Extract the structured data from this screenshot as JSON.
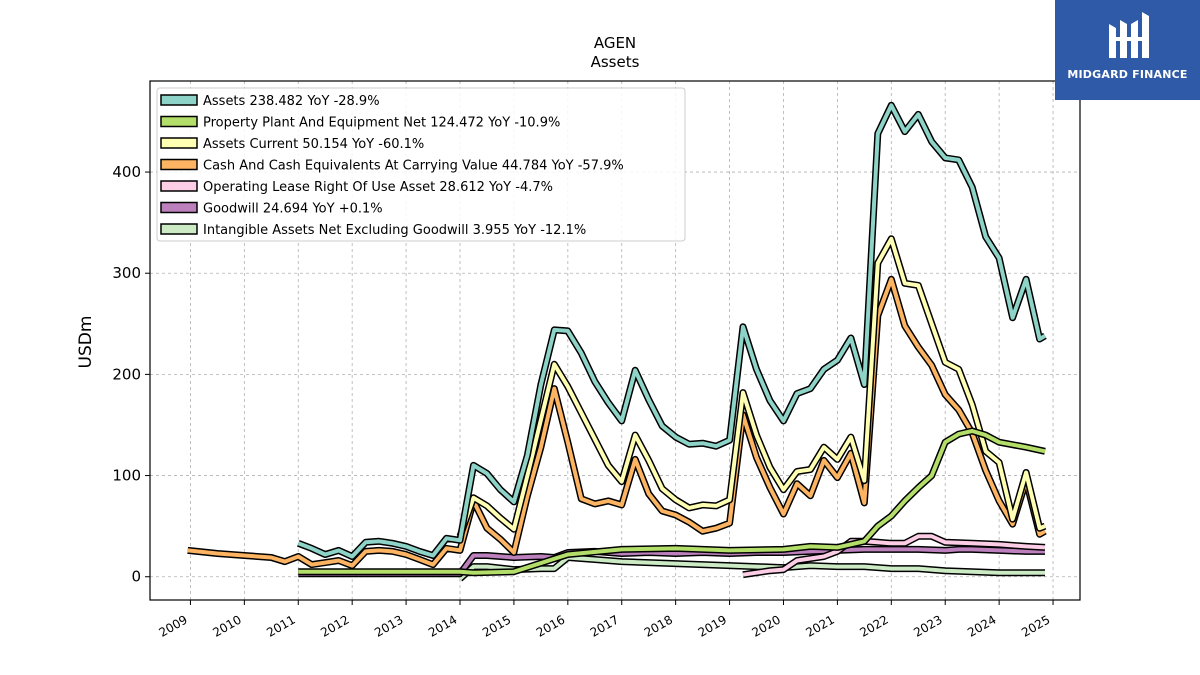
{
  "chart_data": {
    "type": "line",
    "title": "AGEN",
    "subtitle": "Assets",
    "xlabel": "",
    "ylabel": "USDm",
    "xlim": [
      2008.25,
      2025.5
    ],
    "ylim": [
      -23,
      490
    ],
    "xticks": [
      "2009",
      "2010",
      "2011",
      "2012",
      "2013",
      "2014",
      "2015",
      "2016",
      "2017",
      "2018",
      "2019",
      "2020",
      "2021",
      "2022",
      "2023",
      "2024",
      "2025"
    ],
    "yticks": [
      0,
      100,
      200,
      300,
      400
    ],
    "grid": true,
    "legend_position": "top-left",
    "series": [
      {
        "name": "Assets  238.482 YoY -28.9%",
        "color": "#8dd3c7",
        "points": [
          [
            2011.0,
            33
          ],
          [
            2011.25,
            28
          ],
          [
            2011.5,
            22
          ],
          [
            2011.75,
            26
          ],
          [
            2012.0,
            20
          ],
          [
            2012.25,
            34
          ],
          [
            2012.5,
            35
          ],
          [
            2012.75,
            33
          ],
          [
            2013.0,
            30
          ],
          [
            2013.25,
            25
          ],
          [
            2013.5,
            21
          ],
          [
            2013.75,
            38
          ],
          [
            2014.0,
            36
          ],
          [
            2014.25,
            110
          ],
          [
            2014.5,
            102
          ],
          [
            2014.75,
            86
          ],
          [
            2015.0,
            74
          ],
          [
            2015.25,
            120
          ],
          [
            2015.5,
            190
          ],
          [
            2015.75,
            244
          ],
          [
            2016.0,
            243
          ],
          [
            2016.25,
            221
          ],
          [
            2016.5,
            193
          ],
          [
            2016.75,
            172
          ],
          [
            2017.0,
            154
          ],
          [
            2017.25,
            204
          ],
          [
            2017.5,
            175
          ],
          [
            2017.75,
            149
          ],
          [
            2018.0,
            138
          ],
          [
            2018.25,
            131
          ],
          [
            2018.5,
            132
          ],
          [
            2018.75,
            129
          ],
          [
            2019.0,
            135
          ],
          [
            2019.25,
            247
          ],
          [
            2019.5,
            205
          ],
          [
            2019.75,
            174
          ],
          [
            2020.0,
            154
          ],
          [
            2020.25,
            181
          ],
          [
            2020.5,
            186
          ],
          [
            2020.75,
            205
          ],
          [
            2021.0,
            214
          ],
          [
            2021.25,
            236
          ],
          [
            2021.5,
            190
          ],
          [
            2021.75,
            438
          ],
          [
            2022.0,
            466
          ],
          [
            2022.25,
            440
          ],
          [
            2022.5,
            457
          ],
          [
            2022.75,
            430
          ],
          [
            2023.0,
            414
          ],
          [
            2023.25,
            412
          ],
          [
            2023.5,
            385
          ],
          [
            2023.75,
            336
          ],
          [
            2024.0,
            315
          ],
          [
            2024.25,
            256
          ],
          [
            2024.5,
            294
          ],
          [
            2024.75,
            235
          ],
          [
            2024.85,
            238
          ]
        ]
      },
      {
        "name": "Property Plant And Equipment Net  124.472 YoY -10.9%",
        "color": "#b3de69",
        "points": [
          [
            2011.0,
            5
          ],
          [
            2012.0,
            5
          ],
          [
            2013.0,
            5
          ],
          [
            2014.0,
            5
          ],
          [
            2014.25,
            4
          ],
          [
            2015.0,
            5
          ],
          [
            2016.0,
            22
          ],
          [
            2017.0,
            27
          ],
          [
            2018.0,
            28
          ],
          [
            2019.0,
            26
          ],
          [
            2020.0,
            27
          ],
          [
            2020.5,
            30
          ],
          [
            2021.0,
            29
          ],
          [
            2021.5,
            35
          ],
          [
            2021.75,
            50
          ],
          [
            2022.0,
            60
          ],
          [
            2022.25,
            75
          ],
          [
            2022.5,
            88
          ],
          [
            2022.75,
            100
          ],
          [
            2023.0,
            133
          ],
          [
            2023.25,
            141
          ],
          [
            2023.5,
            144
          ],
          [
            2023.75,
            140
          ],
          [
            2024.0,
            133
          ],
          [
            2024.5,
            128
          ],
          [
            2024.85,
            124
          ]
        ]
      },
      {
        "name": "Assets Current  50.154 YoY -60.1%",
        "color": "#ffffb3",
        "points": [
          [
            2014.0,
            40
          ],
          [
            2014.25,
            78
          ],
          [
            2014.5,
            70
          ],
          [
            2014.75,
            58
          ],
          [
            2015.0,
            47
          ],
          [
            2015.25,
            100
          ],
          [
            2015.5,
            155
          ],
          [
            2015.75,
            210
          ],
          [
            2016.0,
            188
          ],
          [
            2016.25,
            162
          ],
          [
            2016.5,
            136
          ],
          [
            2016.75,
            110
          ],
          [
            2017.0,
            94
          ],
          [
            2017.25,
            140
          ],
          [
            2017.5,
            115
          ],
          [
            2017.75,
            87
          ],
          [
            2018.0,
            76
          ],
          [
            2018.25,
            68
          ],
          [
            2018.5,
            71
          ],
          [
            2018.75,
            70
          ],
          [
            2019.0,
            76
          ],
          [
            2019.25,
            182
          ],
          [
            2019.5,
            140
          ],
          [
            2019.75,
            108
          ],
          [
            2020.0,
            86
          ],
          [
            2020.25,
            104
          ],
          [
            2020.5,
            106
          ],
          [
            2020.75,
            128
          ],
          [
            2021.0,
            116
          ],
          [
            2021.25,
            138
          ],
          [
            2021.5,
            95
          ],
          [
            2021.75,
            310
          ],
          [
            2022.0,
            334
          ],
          [
            2022.25,
            290
          ],
          [
            2022.5,
            288
          ],
          [
            2022.75,
            250
          ],
          [
            2023.0,
            212
          ],
          [
            2023.25,
            205
          ],
          [
            2023.5,
            170
          ],
          [
            2023.75,
            124
          ],
          [
            2024.0,
            113
          ],
          [
            2024.25,
            57
          ],
          [
            2024.5,
            103
          ],
          [
            2024.75,
            48
          ],
          [
            2024.85,
            50
          ]
        ]
      },
      {
        "name": "Cash And Cash Equivalents At Carrying Value  44.784 YoY -57.9%",
        "color": "#fdb462",
        "points": [
          [
            2008.95,
            26
          ],
          [
            2009.5,
            23
          ],
          [
            2010.0,
            21
          ],
          [
            2010.5,
            19
          ],
          [
            2010.75,
            15
          ],
          [
            2011.0,
            20
          ],
          [
            2011.25,
            12
          ],
          [
            2011.5,
            14
          ],
          [
            2011.75,
            16
          ],
          [
            2012.0,
            11
          ],
          [
            2012.25,
            25
          ],
          [
            2012.5,
            26
          ],
          [
            2012.75,
            25
          ],
          [
            2013.0,
            22
          ],
          [
            2013.25,
            17
          ],
          [
            2013.5,
            12
          ],
          [
            2013.75,
            28
          ],
          [
            2014.0,
            26
          ],
          [
            2014.25,
            75
          ],
          [
            2014.5,
            48
          ],
          [
            2014.75,
            37
          ],
          [
            2015.0,
            24
          ],
          [
            2015.25,
            80
          ],
          [
            2015.5,
            128
          ],
          [
            2015.75,
            186
          ],
          [
            2016.0,
            133
          ],
          [
            2016.25,
            77
          ],
          [
            2016.5,
            72
          ],
          [
            2016.75,
            75
          ],
          [
            2017.0,
            71
          ],
          [
            2017.25,
            116
          ],
          [
            2017.5,
            82
          ],
          [
            2017.75,
            65
          ],
          [
            2018.0,
            61
          ],
          [
            2018.25,
            54
          ],
          [
            2018.5,
            45
          ],
          [
            2018.75,
            48
          ],
          [
            2019.0,
            53
          ],
          [
            2019.25,
            160
          ],
          [
            2019.5,
            118
          ],
          [
            2019.75,
            88
          ],
          [
            2020.0,
            62
          ],
          [
            2020.25,
            92
          ],
          [
            2020.5,
            80
          ],
          [
            2020.75,
            115
          ],
          [
            2021.0,
            98
          ],
          [
            2021.25,
            122
          ],
          [
            2021.5,
            73
          ],
          [
            2021.75,
            258
          ],
          [
            2022.0,
            294
          ],
          [
            2022.25,
            248
          ],
          [
            2022.5,
            227
          ],
          [
            2022.75,
            209
          ],
          [
            2023.0,
            180
          ],
          [
            2023.25,
            165
          ],
          [
            2023.5,
            142
          ],
          [
            2023.75,
            105
          ],
          [
            2024.0,
            75
          ],
          [
            2024.25,
            52
          ],
          [
            2024.5,
            95
          ],
          [
            2024.75,
            42
          ],
          [
            2024.85,
            45
          ]
        ]
      },
      {
        "name": "Operating Lease Right Of Use Asset  28.612 YoY -4.7%",
        "color": "#fccde5",
        "points": [
          [
            2019.25,
            2
          ],
          [
            2019.5,
            4
          ],
          [
            2019.75,
            6
          ],
          [
            2020.0,
            7
          ],
          [
            2020.25,
            16
          ],
          [
            2020.5,
            18
          ],
          [
            2020.75,
            20
          ],
          [
            2021.0,
            25
          ],
          [
            2021.25,
            35
          ],
          [
            2021.5,
            35
          ],
          [
            2021.75,
            34
          ],
          [
            2022.0,
            33
          ],
          [
            2022.25,
            33
          ],
          [
            2022.5,
            40
          ],
          [
            2022.75,
            40
          ],
          [
            2023.0,
            34
          ],
          [
            2023.5,
            33
          ],
          [
            2024.0,
            32
          ],
          [
            2024.5,
            30
          ],
          [
            2024.85,
            29
          ]
        ]
      },
      {
        "name": "Goodwill  24.694 YoY +0.1%",
        "color": "#bc80bd",
        "points": [
          [
            2011.0,
            3
          ],
          [
            2012.0,
            3
          ],
          [
            2013.0,
            3
          ],
          [
            2014.0,
            3
          ],
          [
            2014.25,
            21
          ],
          [
            2014.5,
            21
          ],
          [
            2015.0,
            19
          ],
          [
            2015.5,
            20
          ],
          [
            2015.75,
            19
          ],
          [
            2016.0,
            24
          ],
          [
            2016.5,
            25
          ],
          [
            2017.0,
            23
          ],
          [
            2017.5,
            24
          ],
          [
            2018.0,
            23
          ],
          [
            2018.5,
            24
          ],
          [
            2019.0,
            23
          ],
          [
            2019.5,
            24
          ],
          [
            2020.0,
            24
          ],
          [
            2020.5,
            25
          ],
          [
            2021.0,
            26
          ],
          [
            2021.5,
            27
          ],
          [
            2022.0,
            27
          ],
          [
            2022.5,
            27
          ],
          [
            2023.0,
            26
          ],
          [
            2023.25,
            27
          ],
          [
            2023.5,
            27
          ],
          [
            2024.0,
            26
          ],
          [
            2024.5,
            25
          ],
          [
            2024.85,
            25
          ]
        ]
      },
      {
        "name": "Intangible Assets Net Excluding Goodwill  3.955 YoY -12.1%",
        "color": "#ccebc5",
        "points": [
          [
            2014.0,
            -2
          ],
          [
            2014.25,
            10
          ],
          [
            2014.5,
            10
          ],
          [
            2015.0,
            7
          ],
          [
            2015.5,
            8
          ],
          [
            2015.75,
            8
          ],
          [
            2016.0,
            19
          ],
          [
            2016.5,
            17
          ],
          [
            2017.0,
            15
          ],
          [
            2017.5,
            14
          ],
          [
            2018.0,
            13
          ],
          [
            2018.5,
            12
          ],
          [
            2019.0,
            11
          ],
          [
            2019.5,
            10
          ],
          [
            2020.0,
            9
          ],
          [
            2020.5,
            11
          ],
          [
            2021.0,
            10
          ],
          [
            2021.5,
            10
          ],
          [
            2022.0,
            8
          ],
          [
            2022.5,
            8
          ],
          [
            2023.0,
            6
          ],
          [
            2023.5,
            5
          ],
          [
            2024.0,
            4
          ],
          [
            2024.5,
            4
          ],
          [
            2024.85,
            4
          ]
        ]
      }
    ]
  },
  "logo": {
    "text": "MIDGARD FINANCE",
    "background": "#2f5aa8"
  }
}
